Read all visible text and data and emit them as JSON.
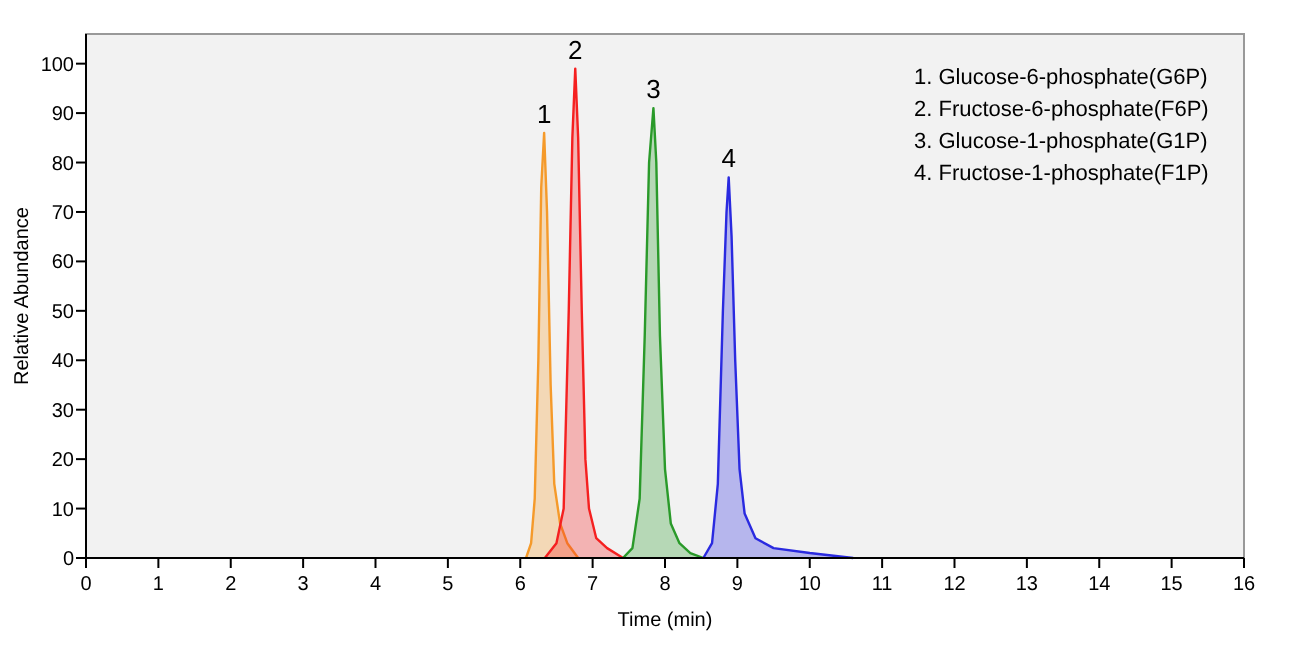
{
  "chart_data": {
    "type": "area",
    "xlabel": "Time (min)",
    "ylabel": "Relative Abundance",
    "xlim": [
      0,
      16
    ],
    "xticks": [
      0,
      1,
      2,
      3,
      4,
      5,
      6,
      7,
      8,
      9,
      10,
      11,
      12,
      13,
      14,
      15,
      16
    ],
    "ylim": [
      0,
      106
    ],
    "yticks": [
      0,
      10,
      20,
      30,
      40,
      50,
      60,
      70,
      80,
      90,
      100
    ],
    "grid": false,
    "series": [
      {
        "color": "#f59a2a",
        "x": [
          6.08,
          6.15,
          6.2,
          6.25,
          6.29,
          6.33,
          6.37,
          6.42,
          6.47,
          6.55,
          6.65,
          6.8
        ],
        "values": [
          0,
          3,
          12,
          40,
          75,
          86,
          70,
          35,
          15,
          7,
          3,
          0
        ]
      },
      {
        "color": "#f52020",
        "x": [
          6.34,
          6.5,
          6.6,
          6.67,
          6.72,
          6.76,
          6.8,
          6.85,
          6.9,
          6.95,
          7.05,
          7.2,
          7.42
        ],
        "values": [
          0,
          3,
          10,
          50,
          85,
          99,
          85,
          50,
          20,
          10,
          4,
          2,
          0
        ]
      },
      {
        "color": "#2a9a2a",
        "x": [
          7.42,
          7.55,
          7.65,
          7.72,
          7.78,
          7.84,
          7.88,
          7.93,
          8.0,
          8.08,
          8.2,
          8.35,
          8.53
        ],
        "values": [
          0,
          2,
          12,
          45,
          80,
          91,
          80,
          45,
          18,
          7,
          3,
          1,
          0
        ]
      },
      {
        "color": "#2a2ae0",
        "x": [
          8.53,
          8.65,
          8.73,
          8.8,
          8.85,
          8.88,
          8.92,
          8.97,
          9.03,
          9.1,
          9.25,
          9.5,
          10.0,
          10.6
        ],
        "values": [
          0,
          3,
          15,
          50,
          70,
          77,
          65,
          40,
          18,
          9,
          4,
          2,
          1,
          0
        ]
      }
    ],
    "annotations": [
      {
        "text": "1",
        "x": 6.33,
        "y": 86
      },
      {
        "text": "2",
        "x": 6.76,
        "y": 99
      },
      {
        "text": "3",
        "x": 7.84,
        "y": 91
      },
      {
        "text": "4",
        "x": 8.88,
        "y": 77
      },
      "1. Glucose-6-phosphate(G6P)",
      "2. Fructose-6-phosphate(F6P)",
      "3. Glucose-1-phosphate(G1P)",
      "4. Fructose-1-phosphate(F1P)"
    ]
  }
}
